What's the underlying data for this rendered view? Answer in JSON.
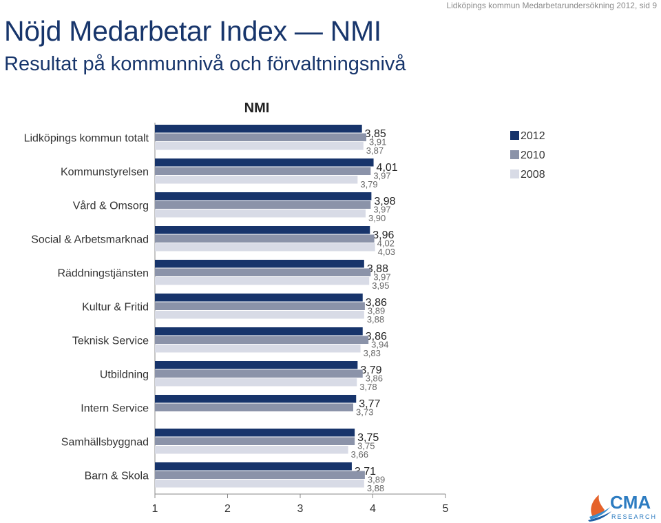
{
  "header": {
    "note": "Lidköpings kommun Medarbetarundersökning 2012, sid 9",
    "title": "Nöjd Medarbetar Index — NMI",
    "subtitle": "Resultat på kommunnivå och förvaltningsnivå"
  },
  "logo": {
    "text": "CMA",
    "subtext": "RESEARCH"
  },
  "colors": {
    "2012": "#17346b",
    "2010": "#8b93a9",
    "2008": "#d8dbe6"
  },
  "chart_data": {
    "type": "bar",
    "orientation": "horizontal",
    "title": "NMI",
    "xlim": [
      1,
      5
    ],
    "xticks": [
      "1",
      "2",
      "3",
      "4",
      "5"
    ],
    "legend_position": "right",
    "categories": [
      "Lidköpings kommun totalt",
      "Kommunstyrelsen",
      "Vård & Omsorg",
      "Social & Arbetsmarknad",
      "Räddningstjänsten",
      "Kultur & Fritid",
      "Teknisk Service",
      "Utbildning",
      "Intern Service",
      "Samhällsbyggnad",
      "Barn & Skola"
    ],
    "series": [
      {
        "name": "2012",
        "values": [
          3.85,
          4.01,
          3.98,
          3.96,
          3.88,
          3.86,
          3.86,
          3.79,
          3.77,
          3.75,
          3.71
        ],
        "labels": [
          "3,85",
          "4,01",
          "3,98",
          "3,96",
          "3,88",
          "3,86",
          "3,86",
          "3,79",
          "3,77",
          "3,75",
          "3,71"
        ]
      },
      {
        "name": "2010",
        "values": [
          3.91,
          3.97,
          3.97,
          4.02,
          3.97,
          3.89,
          3.94,
          3.86,
          3.73,
          3.75,
          3.89
        ],
        "labels": [
          "3,91",
          "3,97",
          "3,97",
          "4,02",
          "3,97",
          "3,89",
          "3,94",
          "3,86",
          "3,73",
          "3,75",
          "3,89"
        ]
      },
      {
        "name": "2008",
        "values": [
          3.87,
          3.79,
          3.9,
          4.03,
          3.95,
          3.88,
          3.83,
          3.78,
          null,
          3.66,
          3.88
        ],
        "labels": [
          "3,87",
          "3,79",
          "3,90",
          "4,03",
          "3,95",
          "3,88",
          "3,83",
          "3,78",
          "",
          "3,66",
          "3,88"
        ]
      }
    ]
  }
}
